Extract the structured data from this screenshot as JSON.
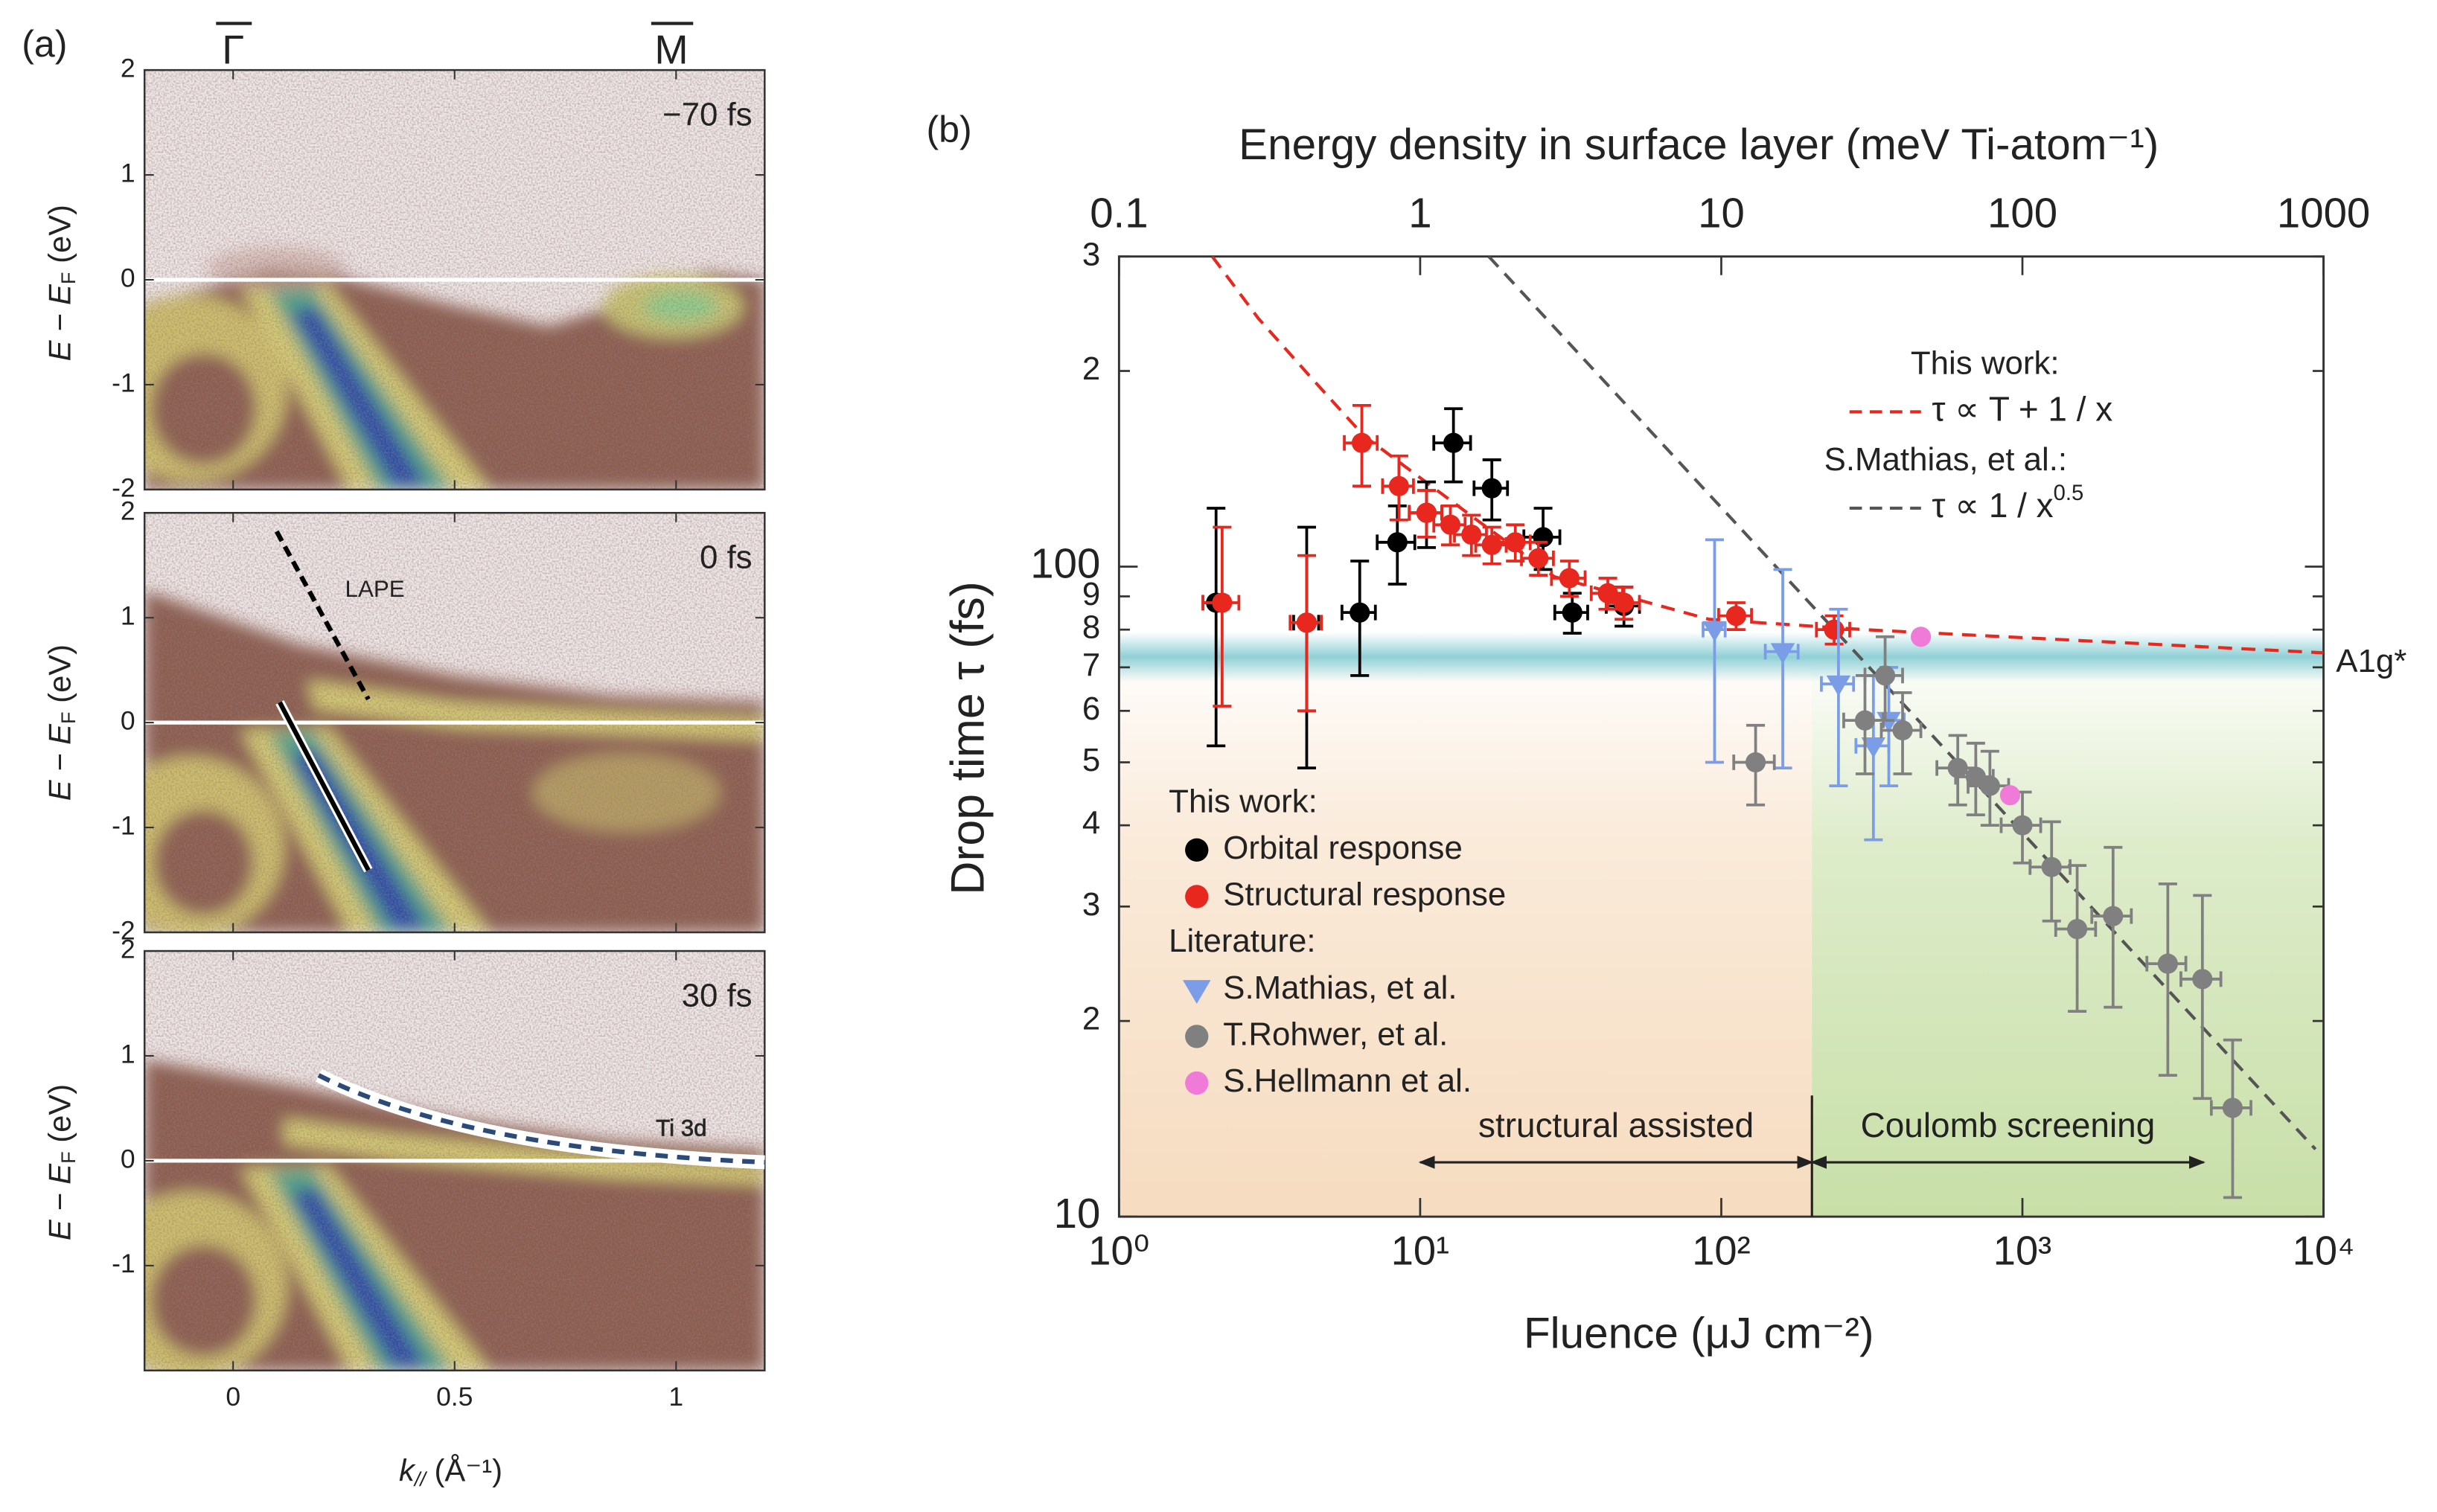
{
  "panel_labels": [
    "(a)",
    "(b)"
  ],
  "panel_a": {
    "k_points": [
      "Γ",
      "M"
    ],
    "xlim": [
      -0.2,
      1.2
    ],
    "xticks": [
      0,
      0.5,
      1
    ],
    "ylim": [
      -2,
      2
    ],
    "fermi_level": 0,
    "ylabel": {
      "text": "E − E",
      "sub": "F",
      "unit": " (eV)"
    },
    "xlabel": {
      "text": "k",
      "sub": "//",
      "unit": " (Å⁻¹)"
    },
    "panels": [
      {
        "delay": "−70 fs",
        "yticks": [
          -2,
          -1,
          0,
          1,
          2
        ]
      },
      {
        "delay": "0 fs",
        "annotation": "LAPE",
        "yticks": [
          -2,
          -1,
          0,
          1,
          2
        ]
      },
      {
        "delay": "30 fs",
        "annotation": "Ti 3d",
        "yticks": [
          -1,
          0,
          1,
          2
        ]
      }
    ]
  },
  "chart_data": {
    "type": "scatter",
    "xlabel": "Fluence (μJ cm⁻²)",
    "x2label": "Energy density in surface layer (meV Ti-atom⁻¹)",
    "ylabel": "Drop time τ (fs)",
    "xscale": "log",
    "yscale": "log",
    "xlim": [
      1,
      10000
    ],
    "x2lim": [
      0.1,
      1000
    ],
    "ylim": [
      10,
      300
    ],
    "xticks": [
      {
        "value": 1,
        "label": "10⁰"
      },
      {
        "value": 10,
        "label": "10¹"
      },
      {
        "value": 100,
        "label": "10²"
      },
      {
        "value": 1000,
        "label": "10³"
      },
      {
        "value": 10000,
        "label": "10⁴"
      }
    ],
    "x2ticks": [
      0.1,
      1,
      10,
      100,
      1000
    ],
    "yticks": [
      10,
      {
        "value": 20,
        "label": "2"
      },
      {
        "value": 30,
        "label": "3"
      },
      {
        "value": 40,
        "label": "4"
      },
      {
        "value": 50,
        "label": "5"
      },
      {
        "value": 60,
        "label": "6"
      },
      {
        "value": 70,
        "label": "7"
      },
      {
        "value": 80,
        "label": "8"
      },
      {
        "value": 90,
        "label": "9"
      },
      100,
      {
        "value": 200,
        "label": "2"
      },
      {
        "value": 300,
        "label": "3"
      }
    ],
    "legend_headers": [
      "This work:",
      "Literature:"
    ],
    "series": [
      {
        "name": "Orbital response",
        "color": "#000000",
        "marker": "circle",
        "x": [
          2.1,
          4.2,
          6.3,
          8.4,
          10.5,
          12.9,
          17.3,
          25.6,
          32,
          47.5
        ],
        "values": [
          88,
          82,
          85,
          109,
          121,
          155,
          132,
          111,
          85,
          87
        ],
        "yerr": [
          35,
          33,
          17,
          15,
          14,
          20,
          14,
          12,
          6,
          6
        ],
        "xerr": [
          0.2,
          0.4,
          0.8,
          1.2,
          1.3,
          1.8,
          2.2,
          3.5,
          4,
          6
        ]
      },
      {
        "name": "Structural response",
        "color": "#e8281e",
        "marker": "circle",
        "x": [
          2.2,
          4.2,
          6.4,
          8.5,
          10.5,
          12.6,
          14.8,
          17.3,
          20.7,
          24.7,
          31.3,
          42,
          47.5,
          112,
          237
        ],
        "values": [
          88,
          82,
          155,
          133,
          121,
          116,
          112,
          108,
          109,
          103,
          96,
          91,
          88,
          84,
          80
        ],
        "yerr": [
          27,
          22,
          22,
          15,
          10,
          8,
          8,
          7,
          7,
          6,
          6,
          5,
          5,
          4,
          4
        ],
        "xerr": [
          0.3,
          0.5,
          0.8,
          1,
          1.3,
          1.5,
          1.8,
          2,
          2.5,
          3,
          4,
          5,
          6,
          14,
          30
        ]
      },
      {
        "name": "S.Mathias, et al.",
        "color": "#7b9de8",
        "marker": "triangle",
        "x": [
          95,
          160,
          245,
          320,
          360
        ],
        "values": [
          80,
          74,
          66,
          53,
          58
        ],
        "yerr": [
          30,
          25,
          20,
          15,
          12
        ],
        "xerr": [
          8,
          20,
          30,
          40,
          45
        ]
      },
      {
        "name": "T.Rohwer, et al.",
        "color": "#808080",
        "marker": "circle",
        "x": [
          130,
          300,
          350,
          400,
          610,
          700,
          780,
          1000,
          1250,
          1520,
          2000,
          3040,
          3960,
          4990
        ],
        "values": [
          50,
          58,
          68,
          56,
          49,
          47.5,
          46,
          40,
          34.5,
          27.7,
          29,
          24.5,
          23.2,
          14.7
        ],
        "yerr": [
          7,
          10,
          10,
          8,
          6,
          6,
          6,
          5,
          6,
          7,
          8,
          8,
          8,
          4
        ],
        "xerr": [
          20,
          45,
          50,
          60,
          90,
          100,
          120,
          150,
          190,
          230,
          300,
          450,
          600,
          750
        ]
      },
      {
        "name": "S.Hellmann et al.",
        "color": "#f07ad8",
        "marker": "circle",
        "x": [
          460,
          910
        ],
        "values": [
          78,
          44.5
        ]
      }
    ],
    "fit_headers": [
      "This work:",
      "S.Mathias, et al.:"
    ],
    "fits": [
      {
        "name": "τ ∝ T + 1 / x",
        "color": "#e8281e",
        "x": [
          2.04,
          2.9,
          4.4,
          6.5,
          15.4,
          27.9,
          91,
          300,
          10000
        ],
        "values": [
          300,
          241,
          194,
          159,
          118,
          96.5,
          83,
          80,
          73.7
        ]
      },
      {
        "name": "τ ∝ 1 / x",
        "exponent": "0.5",
        "color": "#555555",
        "x": [
          16.9,
          9400
        ],
        "values": [
          300,
          12.7
        ]
      }
    ],
    "reference_line": {
      "label": "A1g*",
      "value": 72.6,
      "color": "#8fd0d6"
    },
    "regions": [
      {
        "label": "structural assisted",
        "x": [
          10,
          200
        ],
        "color": "#f6dcc0"
      },
      {
        "label": "Coulomb screening",
        "x": [
          200,
          4000
        ],
        "color": "#c8dfa8"
      }
    ]
  }
}
